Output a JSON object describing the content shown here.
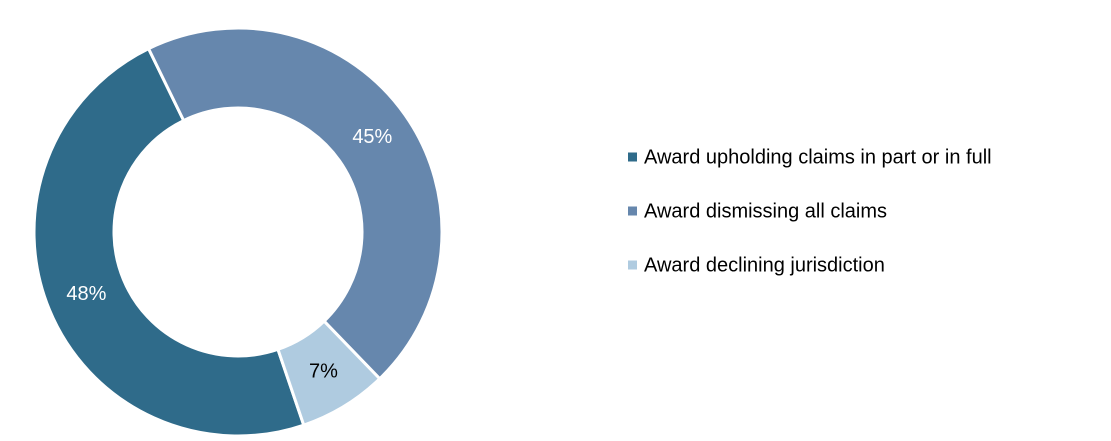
{
  "chart_data": {
    "type": "donut",
    "categories": [
      "Award upholding claims in part or in full",
      "Award dismissing all claims",
      "Award declining jurisdiction"
    ],
    "values": [
      48,
      45,
      7
    ],
    "value_labels": [
      "48%",
      "45%",
      "7%"
    ],
    "colors": [
      "#2f6b8a",
      "#6687ad",
      "#afcbe0"
    ],
    "label_colors": [
      "#ffffff",
      "#ffffff",
      "#000000"
    ],
    "legend": "right"
  }
}
